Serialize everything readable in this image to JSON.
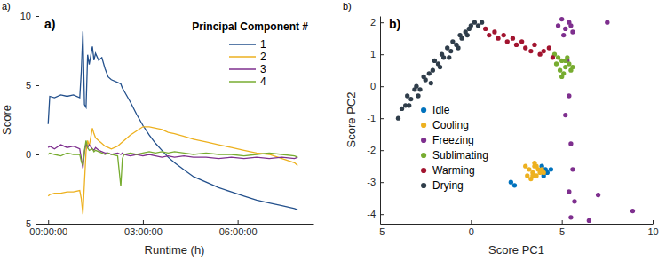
{
  "chart_data": [
    {
      "type": "line",
      "title": "a)",
      "annotations": [
        "a)"
      ],
      "x_label": "Runtime (h)",
      "y_label": "Score",
      "legend_title": "Principal Component #",
      "legend": "upper-right",
      "grid": false,
      "xlim": [
        -0.4,
        8.4
      ],
      "xticks": [
        {
          "value": 0,
          "label": "00:00:00"
        },
        {
          "value": 3,
          "label": "03:00:00"
        },
        {
          "value": 6,
          "label": "06:00:00"
        }
      ],
      "ylim": [
        -5,
        10
      ],
      "yticks": [
        -5,
        0,
        5,
        10
      ],
      "x": [
        0,
        0.05,
        0.2,
        0.4,
        0.6,
        0.8,
        1.0,
        1.05,
        1.1,
        1.15,
        1.2,
        1.25,
        1.3,
        1.4,
        1.45,
        1.5,
        1.6,
        1.7,
        1.8,
        1.9,
        2.0,
        2.2,
        2.3,
        2.35,
        2.4,
        2.6,
        2.8,
        3.0,
        3.2,
        3.4,
        3.6,
        3.8,
        4.0,
        4.3,
        4.6,
        5.0,
        5.4,
        5.8,
        6.2,
        6.6,
        7.0,
        7.4,
        7.8,
        7.9
      ],
      "series": [
        {
          "name": "1",
          "color": "#23508c",
          "values": [
            2.2,
            4.2,
            4.1,
            4.3,
            4.2,
            4.3,
            4.1,
            6.0,
            8.9,
            3.6,
            3.4,
            7.2,
            6.5,
            7.8,
            6.8,
            7.3,
            6.8,
            7.0,
            6.2,
            5.6,
            5.4,
            5.2,
            5.1,
            4.8,
            4.6,
            3.8,
            2.9,
            2.1,
            1.4,
            0.8,
            0.3,
            -0.2,
            -0.6,
            -1.1,
            -1.6,
            -2.0,
            -2.4,
            -2.7,
            -3.0,
            -3.3,
            -3.5,
            -3.7,
            -3.9,
            -4.0
          ]
        },
        {
          "name": "2",
          "color": "#edb120",
          "values": [
            -3.0,
            -2.9,
            -2.8,
            -2.8,
            -2.7,
            -2.7,
            -2.6,
            -3.2,
            -4.3,
            -2.0,
            0.2,
            1.0,
            0.6,
            1.9,
            1.5,
            1.2,
            1.0,
            0.8,
            0.6,
            0.5,
            0.4,
            0.6,
            0.8,
            0.9,
            1.0,
            1.4,
            1.7,
            2.0,
            2.0,
            1.9,
            1.8,
            1.6,
            1.5,
            1.3,
            1.1,
            0.9,
            0.7,
            0.5,
            0.3,
            0.1,
            0.0,
            -0.3,
            -0.6,
            -0.8
          ]
        },
        {
          "name": "3",
          "color": "#7e2f8e",
          "values": [
            0.5,
            0.6,
            0.4,
            0.7,
            0.5,
            0.6,
            0.4,
            -0.3,
            -1.0,
            0.2,
            0.8,
            0.5,
            0.7,
            0.4,
            0.3,
            0.5,
            0.3,
            0.2,
            0.1,
            0.1,
            0.0,
            0.1,
            0.0,
            0.1,
            0.0,
            -0.1,
            0.0,
            -0.1,
            0.0,
            -0.1,
            -0.2,
            -0.1,
            -0.2,
            -0.1,
            -0.2,
            -0.2,
            -0.3,
            -0.2,
            -0.3,
            -0.2,
            -0.3,
            -0.2,
            -0.3,
            -0.2
          ]
        },
        {
          "name": "4",
          "color": "#77ac30",
          "values": [
            0.0,
            0.1,
            0.0,
            -0.1,
            0.1,
            0.0,
            0.0,
            -0.5,
            -0.8,
            0.3,
            1.0,
            0.5,
            0.3,
            0.4,
            0.2,
            0.3,
            0.2,
            0.1,
            0.0,
            0.1,
            0.0,
            -0.1,
            -2.3,
            -0.3,
            0.0,
            0.1,
            0.0,
            0.1,
            0.2,
            0.1,
            0.2,
            0.1,
            0.2,
            0.1,
            0.0,
            0.1,
            0.0,
            0.0,
            -0.1,
            0.0,
            0.1,
            0.0,
            -0.1,
            -0.2
          ]
        }
      ]
    },
    {
      "type": "scatter",
      "title": "b)",
      "annotations": [
        "b)"
      ],
      "x_label": "Score PC1",
      "y_label": "Score PC2",
      "legend": "lower-left",
      "grid": false,
      "marker": "circle",
      "xlim": [
        -5,
        10
      ],
      "xticks": [
        -5,
        0,
        5,
        10
      ],
      "ylim": [
        -4.3,
        2.2
      ],
      "yticks": [
        -4,
        -3,
        -2,
        -1,
        0,
        1,
        2
      ],
      "series": [
        {
          "name": "Idle",
          "color": "#0072bd",
          "x": [
            3.9,
            4.1,
            4.2,
            4.4,
            4.0,
            2.2,
            2.4
          ],
          "values": [
            -2.5,
            -2.6,
            -2.7,
            -2.6,
            -2.8,
            -3.0,
            -3.1
          ]
        },
        {
          "name": "Cooling",
          "color": "#edb120",
          "x": [
            3.0,
            3.2,
            3.4,
            3.5,
            3.6,
            3.7,
            3.8,
            3.3,
            3.5,
            3.9,
            3.1,
            3.6,
            3.4,
            4.0
          ],
          "values": [
            -2.5,
            -2.6,
            -2.7,
            -2.5,
            -2.8,
            -2.6,
            -2.7,
            -2.9,
            -2.4,
            -2.6,
            -2.8,
            -2.5,
            -2.8,
            -2.7
          ]
        },
        {
          "name": "Freezing",
          "color": "#7e2f8e",
          "x": [
            4.8,
            5.0,
            5.2,
            5.4,
            5.6,
            5.1,
            5.5,
            7.5,
            5.3,
            5.4,
            5.2,
            5.5,
            5.6,
            5.4,
            5.7,
            5.5,
            7.0,
            8.9,
            6.5
          ],
          "values": [
            1.9,
            2.1,
            1.8,
            2.0,
            1.7,
            1.6,
            1.9,
            2.0,
            0.8,
            -0.3,
            -0.9,
            -1.8,
            -2.6,
            -3.3,
            -3.6,
            -4.1,
            -3.4,
            -3.9,
            -4.2
          ]
        },
        {
          "name": "Sublimating",
          "color": "#77ac30",
          "x": [
            4.6,
            4.8,
            5.0,
            5.2,
            5.4,
            4.9,
            5.1,
            5.3,
            5.5,
            4.7,
            5.0,
            5.2,
            5.6
          ],
          "values": [
            1.0,
            0.9,
            0.8,
            0.6,
            0.7,
            0.5,
            0.4,
            0.9,
            0.5,
            0.7,
            0.3,
            0.8,
            0.6
          ]
        },
        {
          "name": "Warming",
          "color": "#a2142f",
          "x": [
            0.8,
            1.0,
            1.3,
            1.5,
            1.8,
            2.0,
            2.3,
            2.5,
            2.8,
            3.0,
            3.3,
            3.5,
            3.8,
            4.0,
            4.3,
            4.5
          ],
          "values": [
            1.8,
            1.6,
            1.7,
            1.5,
            1.6,
            1.4,
            1.5,
            1.3,
            1.4,
            1.2,
            1.1,
            1.3,
            1.0,
            1.1,
            1.2,
            0.9
          ]
        },
        {
          "name": "Drying",
          "color": "#2f3d4a",
          "x": [
            -4.0,
            -3.8,
            -3.6,
            -3.5,
            -3.3,
            -3.1,
            -3.0,
            -2.8,
            -2.6,
            -2.5,
            -2.3,
            -2.1,
            -2.0,
            -1.8,
            -1.6,
            -1.5,
            -1.3,
            -1.1,
            -1.0,
            -0.8,
            -0.6,
            -0.5,
            -0.3,
            -0.1,
            0.0,
            0.2,
            0.4,
            0.6,
            -3.4,
            -2.9,
            -2.2,
            -1.7,
            -1.2,
            -0.7,
            -0.2
          ],
          "values": [
            -1.0,
            -0.7,
            -0.6,
            -0.3,
            -0.4,
            -0.1,
            0.0,
            -0.1,
            0.3,
            0.2,
            0.4,
            0.5,
            0.8,
            0.7,
            1.0,
            0.9,
            1.2,
            1.1,
            1.4,
            1.3,
            1.6,
            1.5,
            1.7,
            1.8,
            1.9,
            2.0,
            1.9,
            2.0,
            -0.6,
            -0.3,
            0.1,
            0.6,
            0.9,
            1.2,
            1.6
          ]
        }
      ]
    }
  ]
}
